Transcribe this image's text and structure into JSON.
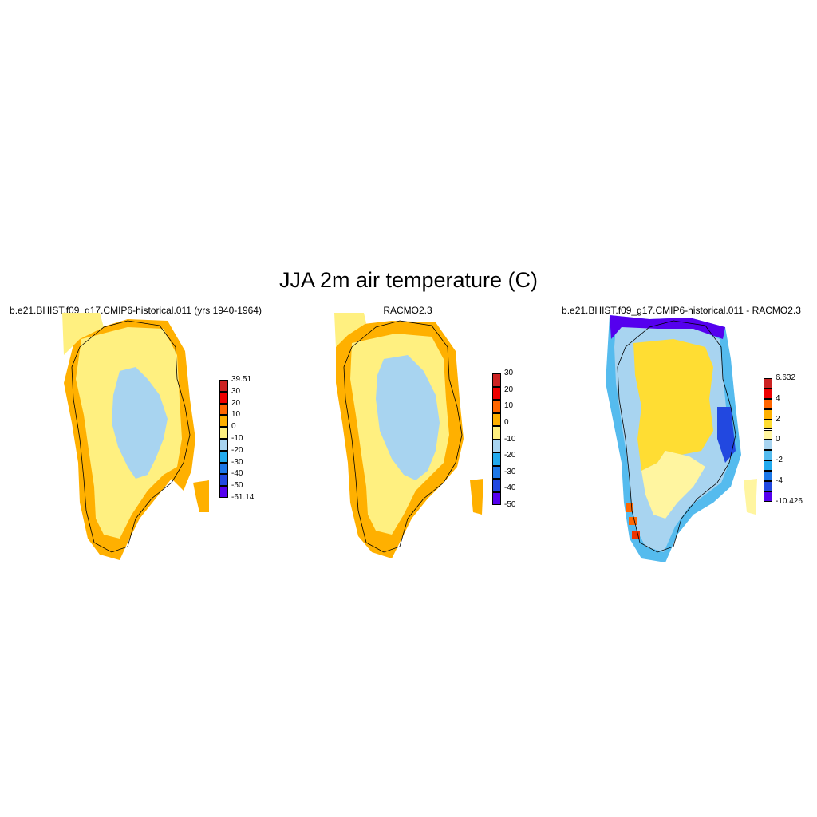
{
  "title": "JJA 2m air temperature (C)",
  "panels": [
    {
      "title": "b.e21.BHIST.f09_g17.CMIP6-historical.011 (yrs 1940-1964)",
      "colorbar": {
        "labels": [
          "39.51",
          "30",
          "20",
          "10",
          "0",
          "-10",
          "-20",
          "-30",
          "-40",
          "-50",
          "-61.14"
        ],
        "colors": [
          "#cc2222",
          "#ee0000",
          "#ff6600",
          "#ffb000",
          "#fff080",
          "#a8d4f0",
          "#22aaee",
          "#1e78e8",
          "#2248e0",
          "#5500ee"
        ]
      }
    },
    {
      "title": "RACMO2.3",
      "colorbar": {
        "labels": [
          "30",
          "20",
          "10",
          "0",
          "-10",
          "-20",
          "-30",
          "-40",
          "-50"
        ],
        "colors": [
          "#cc2222",
          "#ee0000",
          "#ff6600",
          "#ffb000",
          "#fff080",
          "#a8d4f0",
          "#22aaee",
          "#1e78e8",
          "#2248e0",
          "#5500ee"
        ]
      }
    },
    {
      "title": "b.e21.BHIST.f09_g17.CMIP6-historical.011 - RACMO2.3",
      "colorbar": {
        "labels": [
          "6.632",
          "4",
          "2",
          "0",
          "-2",
          "-4",
          "-10.426"
        ],
        "colors": [
          "#cc2222",
          "#ee0000",
          "#ff6600",
          "#ffb000",
          "#ffdd33",
          "#fff5a0",
          "#a8d4f0",
          "#55bbee",
          "#22aaee",
          "#1e78e8",
          "#2248e0",
          "#5500ee"
        ]
      }
    }
  ]
}
